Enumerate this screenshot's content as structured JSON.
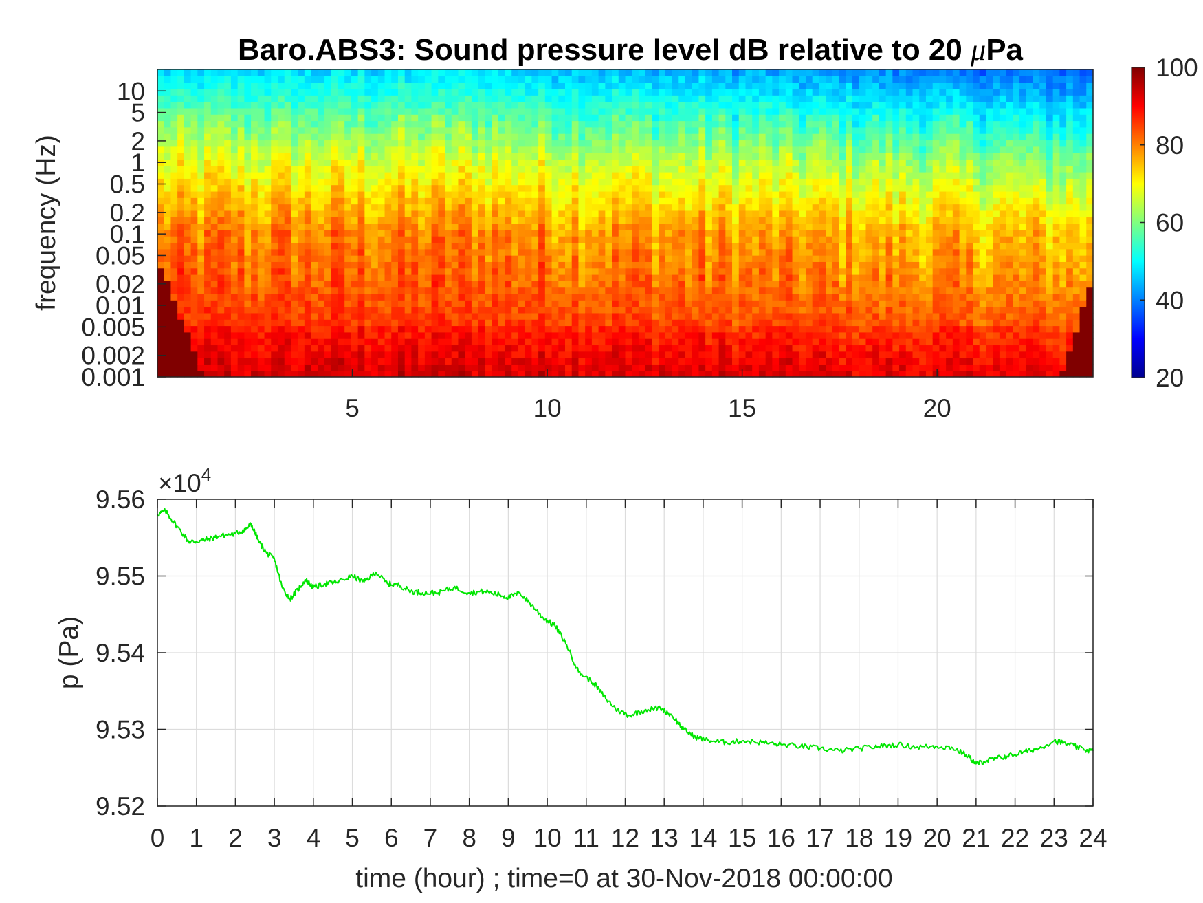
{
  "chart_data": [
    {
      "type": "heatmap",
      "title_prefix": "Baro.ABS3: Sound pressure level dB relative to 20 ",
      "title_mu": "μ",
      "title_suffix": "Pa",
      "xlabel": "",
      "ylabel": "frequency (Hz)",
      "x_ticks": [
        5,
        10,
        15,
        20
      ],
      "xlim": [
        0,
        24
      ],
      "y_scale": "log",
      "ylim": [
        0.001,
        20
      ],
      "y_ticks": [
        0.001,
        0.002,
        0.005,
        0.01,
        0.02,
        0.05,
        0.1,
        0.2,
        0.5,
        1,
        2,
        5,
        10
      ],
      "y_tick_labels": [
        "0.001",
        "0.002",
        "0.005",
        "0.01",
        "0.02",
        "0.05",
        "0.1",
        "0.2",
        "0.5",
        "1",
        "2",
        "5",
        "10"
      ],
      "colorbar": {
        "range": [
          20,
          100
        ],
        "ticks": [
          20,
          40,
          60,
          80,
          100
        ],
        "colormap": "jet"
      }
    },
    {
      "type": "line",
      "xlabel": "time (hour) ; time=0 at 30-Nov-2018 00:00:00",
      "ylabel": "p (Pa)",
      "xlim": [
        0,
        24
      ],
      "ylim": [
        95200,
        95600
      ],
      "x_ticks": [
        0,
        1,
        2,
        3,
        4,
        5,
        6,
        7,
        8,
        9,
        10,
        11,
        12,
        13,
        14,
        15,
        16,
        17,
        18,
        19,
        20,
        21,
        22,
        23,
        24
      ],
      "y_ticks": [
        95200,
        95300,
        95400,
        95500,
        95600
      ],
      "y_tick_labels": [
        "9.52",
        "9.53",
        "9.54",
        "9.55",
        "9.56"
      ],
      "exponent_label": "×10",
      "exponent_power": "4",
      "grid": true,
      "series": [
        {
          "color": "#00e600",
          "x": [
            0,
            0.2,
            0.5,
            0.8,
            1.0,
            1.3,
            1.6,
            2.0,
            2.3,
            2.4,
            2.6,
            2.8,
            3.0,
            3.2,
            3.4,
            3.6,
            3.8,
            4.0,
            4.3,
            4.6,
            5.0,
            5.3,
            5.6,
            5.9,
            6.2,
            6.5,
            6.8,
            7.2,
            7.6,
            8.0,
            8.4,
            8.8,
            9.0,
            9.3,
            9.6,
            9.9,
            10.2,
            10.5,
            10.8,
            11.2,
            11.5,
            11.8,
            12.1,
            12.5,
            12.9,
            13.2,
            13.5,
            13.8,
            14.2,
            14.6,
            15.0,
            15.5,
            16.0,
            16.5,
            17.0,
            17.5,
            18.0,
            18.5,
            19.0,
            19.5,
            20.0,
            20.4,
            20.8,
            21.0,
            21.2,
            21.5,
            21.8,
            22.2,
            22.6,
            23.0,
            23.4,
            23.8,
            24.0
          ],
          "y": [
            95580,
            95585,
            95565,
            95545,
            95545,
            95548,
            95552,
            95555,
            95562,
            95568,
            95545,
            95530,
            95522,
            95485,
            95470,
            95482,
            95495,
            95485,
            95490,
            95492,
            95500,
            95492,
            95505,
            95490,
            95488,
            95480,
            95478,
            95478,
            95485,
            95478,
            95480,
            95475,
            95472,
            95478,
            95462,
            95445,
            95435,
            95410,
            95375,
            95360,
            95340,
            95325,
            95318,
            95325,
            95328,
            95318,
            95300,
            95290,
            95285,
            95283,
            95285,
            95283,
            95280,
            95278,
            95275,
            95272,
            95275,
            95278,
            95280,
            95277,
            95278,
            95276,
            95265,
            95255,
            95258,
            95262,
            95265,
            95270,
            95275,
            95285,
            95280,
            95273,
            95272
          ]
        }
      ]
    }
  ]
}
